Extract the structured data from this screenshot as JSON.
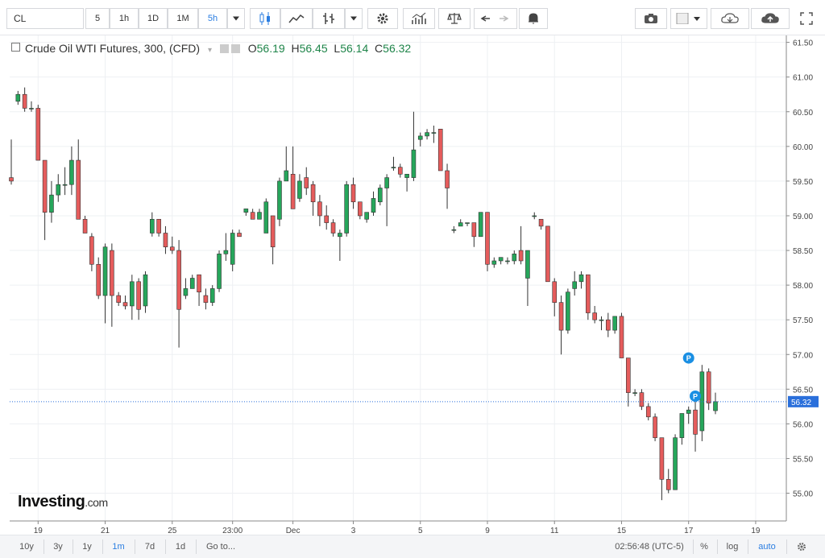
{
  "toolbar": {
    "symbol": "CL",
    "intervals": [
      "5",
      "1h",
      "1D",
      "1M",
      "5h"
    ],
    "active_interval": "5h"
  },
  "legend": {
    "title": "Crude Oil WTI Futures, 300, (CFD)",
    "o_label": "O",
    "o_value": "56.19",
    "h_label": "H",
    "h_value": "56.45",
    "l_label": "L",
    "l_value": "56.14",
    "c_label": "C",
    "c_value": "56.32"
  },
  "logo": {
    "main": "Investing",
    "suffix": ".com"
  },
  "bottom": {
    "ranges": [
      "10y",
      "3y",
      "1y",
      "1m",
      "7d",
      "1d",
      "Go to..."
    ],
    "active_range": "1m",
    "time": "02:56:48 (UTC-5)",
    "percent": "%",
    "log": "log",
    "auto": "auto"
  },
  "colors": {
    "up": "#26a65b",
    "down": "#e55c5c",
    "last_line": "#2a6fdb",
    "grid": "#eef0f3"
  },
  "chart_data": {
    "type": "candlestick",
    "ylim": [
      54.6,
      61.6
    ],
    "y_ticks": [
      "61.50",
      "61.00",
      "60.50",
      "60.00",
      "59.50",
      "59.00",
      "58.50",
      "58.00",
      "57.50",
      "57.00",
      "56.50",
      "56.00",
      "55.50",
      "55.00"
    ],
    "x_ticks": [
      {
        "label": "19",
        "index": 4
      },
      {
        "label": "21",
        "index": 14
      },
      {
        "label": "25",
        "index": 24
      },
      {
        "label": "23:00",
        "index": 33
      },
      {
        "label": "Dec",
        "index": 42
      },
      {
        "label": "3",
        "index": 51
      },
      {
        "label": "5",
        "index": 61
      },
      {
        "label": "9",
        "index": 71
      },
      {
        "label": "11",
        "index": 81
      },
      {
        "label": "15",
        "index": 91
      },
      {
        "label": "17",
        "index": 101
      },
      {
        "label": "19",
        "index": 111
      }
    ],
    "last_price": "56.32",
    "last_value": 56.32,
    "markers": [
      {
        "label": "P",
        "index": 101,
        "value": 56.95
      },
      {
        "label": "P",
        "index": 102,
        "value": 56.4
      }
    ],
    "candles": [
      [
        59.55,
        60.1,
        59.45,
        59.5
      ],
      [
        60.65,
        60.8,
        60.6,
        60.75
      ],
      [
        60.75,
        60.85,
        60.5,
        60.55
      ],
      [
        60.55,
        60.65,
        60.5,
        60.55
      ],
      [
        60.55,
        60.6,
        59.8,
        59.8
      ],
      [
        59.8,
        59.8,
        58.65,
        59.05
      ],
      [
        59.05,
        59.5,
        58.9,
        59.3
      ],
      [
        59.3,
        59.6,
        59.2,
        59.45
      ],
      [
        59.45,
        59.7,
        59.3,
        59.45
      ],
      [
        59.45,
        60.0,
        59.3,
        59.8
      ],
      [
        59.8,
        60.1,
        58.95,
        58.95
      ],
      [
        58.95,
        59.0,
        58.75,
        58.75
      ],
      [
        58.7,
        58.75,
        58.2,
        58.3
      ],
      [
        58.3,
        58.4,
        57.8,
        57.85
      ],
      [
        57.85,
        58.6,
        57.45,
        58.55
      ],
      [
        58.5,
        58.6,
        57.4,
        57.85
      ],
      [
        57.85,
        57.9,
        57.7,
        57.75
      ],
      [
        57.75,
        57.85,
        57.65,
        57.7
      ],
      [
        57.7,
        58.15,
        57.5,
        58.05
      ],
      [
        58.05,
        58.1,
        57.5,
        57.65
      ],
      [
        57.7,
        58.2,
        57.6,
        58.15
      ],
      [
        58.75,
        59.05,
        58.7,
        58.95
      ],
      [
        58.95,
        58.95,
        58.7,
        58.75
      ],
      [
        58.75,
        58.85,
        58.45,
        58.55
      ],
      [
        58.55,
        58.7,
        58.45,
        58.5
      ],
      [
        58.5,
        58.65,
        57.1,
        57.65
      ],
      [
        57.85,
        58.1,
        57.8,
        57.95
      ],
      [
        57.95,
        58.15,
        57.95,
        58.1
      ],
      [
        58.15,
        58.15,
        57.7,
        57.9
      ],
      [
        57.85,
        57.95,
        57.65,
        57.75
      ],
      [
        57.75,
        58.0,
        57.7,
        57.95
      ],
      [
        57.95,
        58.5,
        57.9,
        58.45
      ],
      [
        58.45,
        58.75,
        58.35,
        58.5
      ],
      [
        58.3,
        58.8,
        58.2,
        58.75
      ],
      [
        58.75,
        58.8,
        58.7,
        58.7
      ],
      [
        59.05,
        59.1,
        59.0,
        59.1
      ],
      [
        59.05,
        59.1,
        58.95,
        58.95
      ],
      [
        58.95,
        59.1,
        58.95,
        59.05
      ],
      [
        58.75,
        59.25,
        58.75,
        59.2
      ],
      [
        59.0,
        59.0,
        58.3,
        58.55
      ],
      [
        58.95,
        59.55,
        58.85,
        59.5
      ],
      [
        59.5,
        60.0,
        59.55,
        59.65
      ],
      [
        59.6,
        60.0,
        59.1,
        59.1
      ],
      [
        59.25,
        59.6,
        59.2,
        59.5
      ],
      [
        59.55,
        59.7,
        59.3,
        59.4
      ],
      [
        59.45,
        59.5,
        59.0,
        59.2
      ],
      [
        59.2,
        59.3,
        58.85,
        59.0
      ],
      [
        59.0,
        59.15,
        58.8,
        58.9
      ],
      [
        58.9,
        58.95,
        58.7,
        58.75
      ],
      [
        58.7,
        58.8,
        58.35,
        58.75
      ],
      [
        58.75,
        59.5,
        58.7,
        59.45
      ],
      [
        59.45,
        59.55,
        59.1,
        59.2
      ],
      [
        59.2,
        59.2,
        58.95,
        59.0
      ],
      [
        58.95,
        59.05,
        58.9,
        59.05
      ],
      [
        59.05,
        59.35,
        59.0,
        59.25
      ],
      [
        59.2,
        59.45,
        59.15,
        59.4
      ],
      [
        59.4,
        59.6,
        58.85,
        59.55
      ],
      [
        59.7,
        59.85,
        59.65,
        59.7
      ],
      [
        59.7,
        59.75,
        59.55,
        59.6
      ],
      [
        59.55,
        59.6,
        59.35,
        59.6
      ],
      [
        59.55,
        60.5,
        59.5,
        59.95
      ],
      [
        60.1,
        60.2,
        60.0,
        60.15
      ],
      [
        60.15,
        60.25,
        60.1,
        60.2
      ],
      [
        60.2,
        60.3,
        60.05,
        60.2
      ],
      [
        60.25,
        60.25,
        59.65,
        59.65
      ],
      [
        59.65,
        59.75,
        59.1,
        59.4
      ],
      [
        58.8,
        58.85,
        58.75,
        58.8
      ],
      [
        58.85,
        58.95,
        58.85,
        58.9
      ],
      [
        58.9,
        58.9,
        58.85,
        58.9
      ],
      [
        58.9,
        58.9,
        58.55,
        58.7
      ],
      [
        58.7,
        59.05,
        58.7,
        59.05
      ],
      [
        59.05,
        59.05,
        58.2,
        58.3
      ],
      [
        58.3,
        58.4,
        58.25,
        58.35
      ],
      [
        58.35,
        58.4,
        58.3,
        58.4
      ],
      [
        58.35,
        58.4,
        58.3,
        58.35
      ],
      [
        58.35,
        58.5,
        58.3,
        58.45
      ],
      [
        58.5,
        58.85,
        58.3,
        58.35
      ],
      [
        58.1,
        58.5,
        57.7,
        58.5
      ],
      [
        59.0,
        59.05,
        58.95,
        59.0
      ],
      [
        58.95,
        58.95,
        58.8,
        58.85
      ],
      [
        58.85,
        58.85,
        58.05,
        58.05
      ],
      [
        58.05,
        58.1,
        57.55,
        57.75
      ],
      [
        57.75,
        57.85,
        57.0,
        57.35
      ],
      [
        57.35,
        57.95,
        57.3,
        57.9
      ],
      [
        57.95,
        58.2,
        57.85,
        58.05
      ],
      [
        58.05,
        58.2,
        57.95,
        58.15
      ],
      [
        58.15,
        58.15,
        57.5,
        57.6
      ],
      [
        57.6,
        57.7,
        57.45,
        57.5
      ],
      [
        57.5,
        57.55,
        57.35,
        57.5
      ],
      [
        57.5,
        57.6,
        57.25,
        57.35
      ],
      [
        57.35,
        57.55,
        57.3,
        57.55
      ],
      [
        57.55,
        57.6,
        56.95,
        56.95
      ],
      [
        56.95,
        56.95,
        56.25,
        56.45
      ],
      [
        56.45,
        56.5,
        56.4,
        56.45
      ],
      [
        56.45,
        56.5,
        56.2,
        56.25
      ],
      [
        56.25,
        56.3,
        56.05,
        56.1
      ],
      [
        56.1,
        56.15,
        55.75,
        55.8
      ],
      [
        55.8,
        55.8,
        54.9,
        55.2
      ],
      [
        55.2,
        55.35,
        55.0,
        55.05
      ],
      [
        55.05,
        55.85,
        55.05,
        55.8
      ],
      [
        55.8,
        56.15,
        55.7,
        56.15
      ],
      [
        56.15,
        56.25,
        56.0,
        56.2
      ],
      [
        56.2,
        56.45,
        55.6,
        55.85
      ],
      [
        55.9,
        56.85,
        55.75,
        56.75
      ],
      [
        56.75,
        56.8,
        56.2,
        56.3
      ],
      [
        56.19,
        56.45,
        56.14,
        56.32
      ]
    ]
  }
}
